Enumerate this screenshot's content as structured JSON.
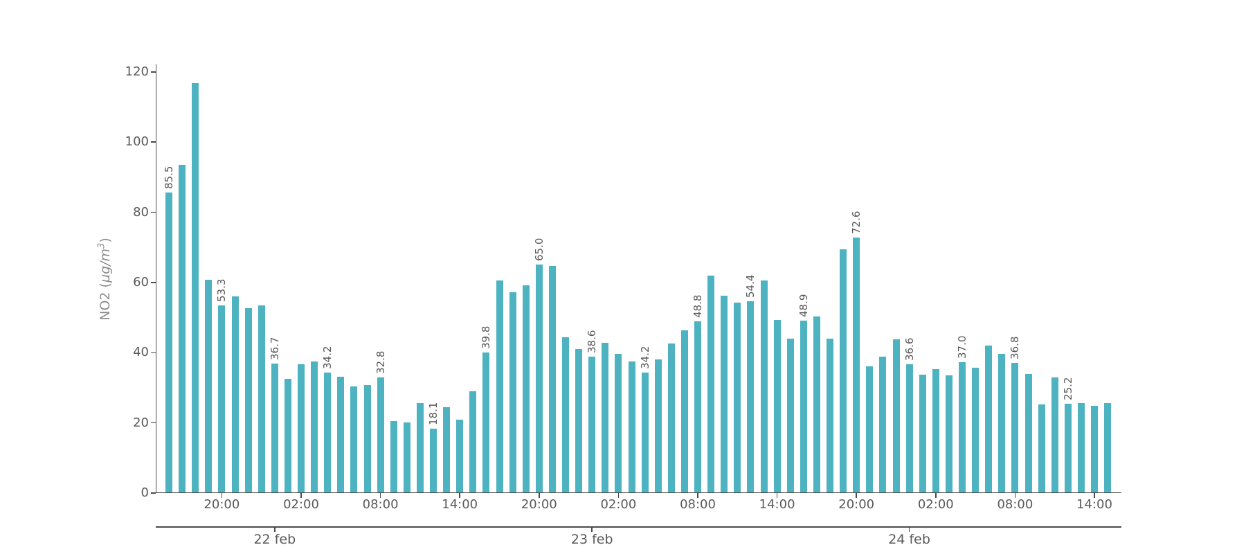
{
  "chart_data": {
    "type": "bar",
    "title": "",
    "ylabel": {
      "prefix": "NO2 (",
      "italic": "µg/m",
      "sup": "3",
      "suffix": ")"
    },
    "ylim": [
      0,
      120
    ],
    "yticks": [
      0,
      20,
      40,
      60,
      80,
      100,
      120
    ],
    "grid": false,
    "legend": "none",
    "bar_color": "#4eb3c1",
    "text_color": "#595959",
    "axis_color": "#4a4a4a",
    "x_unit": "hours",
    "values": [
      85.5,
      93.4,
      116.7,
      60.6,
      53.3,
      55.8,
      52.4,
      53.3,
      36.7,
      32.4,
      36.5,
      37.3,
      34.2,
      32.9,
      30.1,
      30.6,
      32.8,
      20.3,
      19.9,
      25.4,
      18.1,
      24.2,
      20.8,
      28.8,
      39.8,
      60.3,
      57.1,
      58.9,
      65.0,
      64.6,
      44.2,
      40.8,
      38.6,
      42.6,
      39.5,
      37.2,
      34.2,
      37.9,
      42.5,
      46.2,
      48.8,
      61.7,
      56.0,
      54.1,
      54.4,
      60.3,
      49.1,
      43.8,
      48.9,
      50.1,
      43.8,
      69.3,
      72.6,
      35.9,
      38.7,
      43.7,
      36.6,
      33.5,
      35.1,
      33.3,
      37.0,
      35.6,
      41.8,
      39.4,
      36.8,
      33.7,
      25.1,
      32.7,
      25.2,
      25.4,
      24.7,
      25.4
    ],
    "value_labels": [
      {
        "bar_index": 0,
        "label": "85.5"
      },
      {
        "bar_index": 4,
        "label": "53.3"
      },
      {
        "bar_index": 8,
        "label": "36.7"
      },
      {
        "bar_index": 12,
        "label": "34.2"
      },
      {
        "bar_index": 16,
        "label": "32.8"
      },
      {
        "bar_index": 20,
        "label": "18.1"
      },
      {
        "bar_index": 24,
        "label": "39.8"
      },
      {
        "bar_index": 28,
        "label": "65.0"
      },
      {
        "bar_index": 32,
        "label": "38.6"
      },
      {
        "bar_index": 36,
        "label": "34.2"
      },
      {
        "bar_index": 40,
        "label": "48.8"
      },
      {
        "bar_index": 44,
        "label": "54.4"
      },
      {
        "bar_index": 48,
        "label": "48.9"
      },
      {
        "bar_index": 52,
        "label": "72.6"
      },
      {
        "bar_index": 56,
        "label": "36.6"
      },
      {
        "bar_index": 60,
        "label": "37.0"
      },
      {
        "bar_index": 64,
        "label": "36.8"
      },
      {
        "bar_index": 68,
        "label": "25.2"
      }
    ],
    "hour_ticks": [
      {
        "bar_index": 4,
        "label": "20:00"
      },
      {
        "bar_index": 10,
        "label": "02:00"
      },
      {
        "bar_index": 16,
        "label": "08:00"
      },
      {
        "bar_index": 22,
        "label": "14:00"
      },
      {
        "bar_index": 28,
        "label": "20:00"
      },
      {
        "bar_index": 34,
        "label": "02:00"
      },
      {
        "bar_index": 40,
        "label": "08:00"
      },
      {
        "bar_index": 46,
        "label": "14:00"
      },
      {
        "bar_index": 52,
        "label": "20:00"
      },
      {
        "bar_index": 58,
        "label": "02:00"
      },
      {
        "bar_index": 64,
        "label": "08:00"
      },
      {
        "bar_index": 70,
        "label": "14:00"
      }
    ],
    "day_ticks": [
      {
        "bar_index": 8,
        "label": "22 feb"
      },
      {
        "bar_index": 32,
        "label": "23 feb"
      },
      {
        "bar_index": 56,
        "label": "24 feb"
      }
    ]
  }
}
